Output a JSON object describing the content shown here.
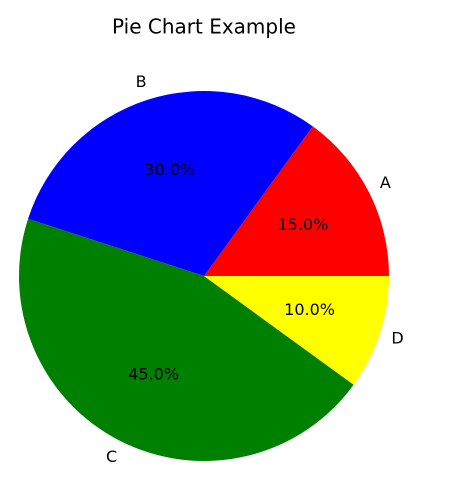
{
  "chart_data": {
    "type": "pie",
    "title": "Pie Chart Example",
    "categories": [
      "A",
      "B",
      "C",
      "D"
    ],
    "values": [
      15,
      30,
      45,
      10
    ],
    "value_labels": [
      "15.0%",
      "30.0%",
      "45.0%",
      "10.0%"
    ],
    "colors": [
      "red",
      "blue",
      "green",
      "yellow"
    ]
  }
}
